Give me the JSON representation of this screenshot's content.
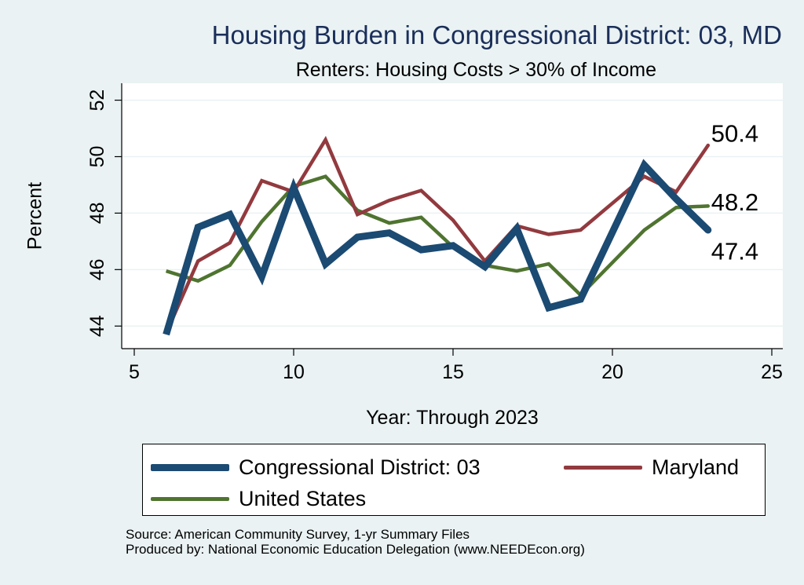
{
  "chart_data": {
    "type": "line",
    "title": "Housing Burden in Congressional District:  03, MD",
    "subtitle": "Renters: Housing Costs > 30% of Income",
    "xlabel": "Year: Through 2023",
    "ylabel": "Percent",
    "xlim": [
      5,
      25
    ],
    "ylim": [
      43.2,
      52.6
    ],
    "xticks": [
      5,
      10,
      15,
      20,
      25
    ],
    "yticks": [
      44,
      46,
      48,
      50,
      52
    ],
    "grid": true,
    "legend_placement": "bottom",
    "series": [
      {
        "name": "Congressional District:  03",
        "color": "#1b4a72",
        "stroke": "thick",
        "x": [
          6,
          7,
          8,
          9,
          10,
          11,
          12,
          13,
          14,
          15,
          16,
          17,
          18,
          19,
          21,
          22,
          23
        ],
        "values": [
          43.7,
          47.5,
          47.95,
          45.75,
          48.9,
          46.2,
          47.15,
          47.3,
          46.7,
          46.85,
          46.1,
          47.45,
          44.65,
          44.95,
          49.7,
          48.5,
          47.4
        ],
        "end_label": "47.4"
      },
      {
        "name": "Maryland",
        "color": "#923a3f",
        "stroke": "medium",
        "x": [
          6,
          7,
          8,
          9,
          10,
          11,
          12,
          13,
          14,
          15,
          16,
          17,
          18,
          19,
          21,
          22,
          23
        ],
        "values": [
          43.75,
          46.3,
          46.95,
          49.15,
          48.75,
          50.6,
          47.95,
          48.45,
          48.8,
          47.75,
          46.3,
          47.55,
          47.25,
          47.4,
          49.3,
          48.75,
          50.4
        ],
        "end_label": "50.4"
      },
      {
        "name": "United States",
        "color": "#4f7430",
        "stroke": "medium",
        "x": [
          6,
          7,
          8,
          9,
          10,
          11,
          12,
          13,
          14,
          15,
          16,
          17,
          18,
          19,
          21,
          22,
          23
        ],
        "values": [
          45.95,
          45.6,
          46.15,
          47.7,
          48.95,
          49.3,
          48.1,
          47.65,
          47.85,
          46.8,
          46.15,
          45.95,
          46.2,
          45.1,
          47.4,
          48.2,
          48.25
        ],
        "end_label": "48.2"
      }
    ],
    "legend": {
      "items": [
        {
          "label": "Congressional District:  03",
          "color": "#1b4a72"
        },
        {
          "label": "Maryland",
          "color": "#923a3f"
        },
        {
          "label": "United States",
          "color": "#4f7430"
        }
      ]
    },
    "source_lines": [
      "Source: American Community Survey, 1-yr Summary Files",
      "Produced by: National Economic Education Delegation (www.NEEDEcon.org)"
    ]
  }
}
